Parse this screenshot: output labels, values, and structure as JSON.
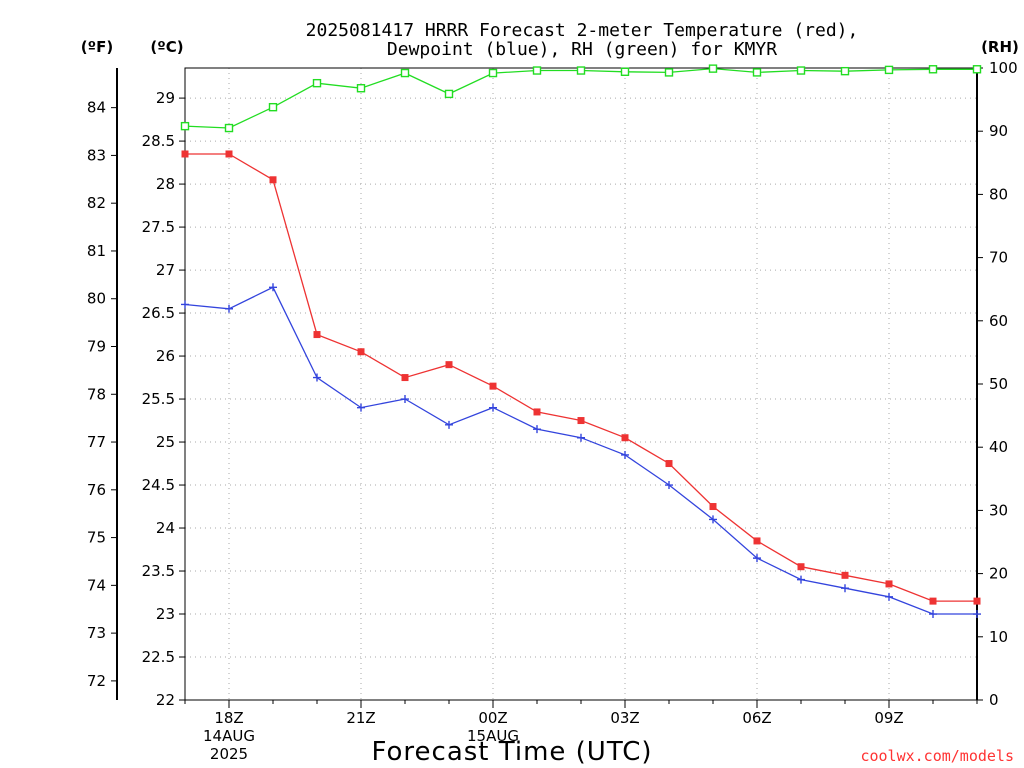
{
  "chart_data": {
    "type": "line",
    "title_line1": "2025081417 HRRR Forecast 2-meter Temperature (red),",
    "title_line2": "Dewpoint (blue), RH (green) for KMYR",
    "xlabel": "Forecast Time (UTC)",
    "credit": "coolwx.com/models",
    "units": {
      "fahrenheit": "(ºF)",
      "celsius": "(ºC)",
      "rh": "(RH)"
    },
    "x_hours_utc": [
      17,
      18,
      19,
      20,
      21,
      22,
      23,
      24,
      25,
      26,
      27,
      28,
      29,
      30,
      31,
      32,
      33,
      34,
      35
    ],
    "x_ticks": [
      {
        "hour": 18,
        "lines": [
          "18Z",
          "14AUG",
          "2025"
        ]
      },
      {
        "hour": 21,
        "lines": [
          "21Z"
        ]
      },
      {
        "hour": 24,
        "lines": [
          "00Z",
          "15AUG"
        ]
      },
      {
        "hour": 27,
        "lines": [
          "03Z"
        ]
      },
      {
        "hour": 30,
        "lines": [
          "06Z"
        ]
      },
      {
        "hour": 33,
        "lines": [
          "09Z"
        ]
      }
    ],
    "xlim": [
      17,
      35
    ],
    "celsius_axis": {
      "ylim": [
        22,
        29.35
      ],
      "ticks": [
        "22",
        "22.5",
        "23",
        "23.5",
        "24",
        "24.5",
        "25",
        "25.5",
        "26",
        "26.5",
        "27",
        "27.5",
        "28",
        "28.5",
        "29"
      ]
    },
    "fahrenheit_axis": {
      "ticks": [
        "72",
        "73",
        "74",
        "75",
        "76",
        "77",
        "78",
        "79",
        "80",
        "81",
        "82",
        "83",
        "84"
      ]
    },
    "rh_axis": {
      "ylim": [
        0,
        100
      ],
      "ticks": [
        "0",
        "10",
        "20",
        "30",
        "40",
        "50",
        "60",
        "70",
        "80",
        "90",
        "100"
      ]
    },
    "grid": true,
    "series": [
      {
        "name": "Temperature",
        "axis": "celsius",
        "color": "#ee3333",
        "marker": "filled-square",
        "values": [
          28.35,
          28.35,
          28.05,
          26.25,
          26.05,
          25.75,
          25.9,
          25.65,
          25.35,
          25.25,
          25.05,
          24.75,
          24.25,
          23.85,
          23.55,
          23.45,
          23.35,
          23.15,
          23.15
        ]
      },
      {
        "name": "Dewpoint",
        "axis": "celsius",
        "color": "#3344dd",
        "marker": "plus",
        "values": [
          26.6,
          26.55,
          26.8,
          25.75,
          25.4,
          25.5,
          25.2,
          25.4,
          25.15,
          25.05,
          24.85,
          24.5,
          24.1,
          23.65,
          23.4,
          23.3,
          23.2,
          23.0,
          23.0
        ]
      },
      {
        "name": "RH",
        "axis": "rh",
        "color": "#22dd22",
        "marker": "open-square",
        "values": [
          90.8,
          90.5,
          93.8,
          97.6,
          96.8,
          99.2,
          95.9,
          99.2,
          99.6,
          99.6,
          99.4,
          99.3,
          99.9,
          99.3,
          99.6,
          99.5,
          99.7,
          99.8,
          99.8
        ]
      }
    ]
  }
}
